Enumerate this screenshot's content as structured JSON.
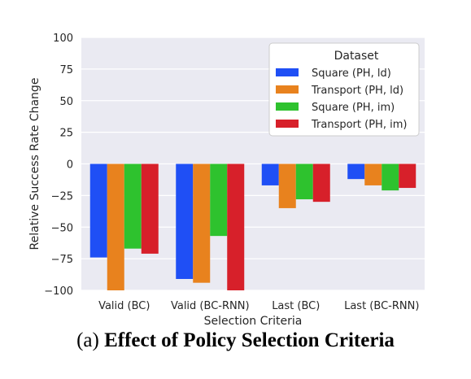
{
  "caption": {
    "prefix": "(a)",
    "title": "Effect of Policy Selection Criteria"
  },
  "chart_data": {
    "type": "bar",
    "xlabel": "Selection Criteria",
    "ylabel": "Relative Success Rate Change",
    "ylim": [
      -100,
      100
    ],
    "yticks": [
      100,
      75,
      50,
      25,
      0,
      -25,
      -50,
      -75,
      -100
    ],
    "ytick_labels": [
      "100",
      "75",
      "50",
      "25",
      "0",
      "−25",
      "−50",
      "−75",
      "−100"
    ],
    "categories": [
      "Valid (BC)",
      "Valid (BC-RNN)",
      "Last (BC)",
      "Last (BC-RNN)"
    ],
    "grid": true,
    "legend": {
      "title": "Dataset",
      "placement": "top-right"
    },
    "background": "#eaeaf2",
    "series": [
      {
        "name": "Square (PH, ld)",
        "color": "#1f4ff5",
        "values": [
          -74,
          -91,
          -17,
          -12
        ]
      },
      {
        "name": "Transport (PH, ld)",
        "color": "#e8821e",
        "values": [
          -100,
          -94,
          -35,
          -17
        ]
      },
      {
        "name": "Square (PH, im)",
        "color": "#2ec22e",
        "values": [
          -67,
          -57,
          -28,
          -21
        ]
      },
      {
        "name": "Transport (PH, im)",
        "color": "#d7202a",
        "values": [
          -71,
          -100,
          -30,
          -19
        ]
      }
    ]
  }
}
